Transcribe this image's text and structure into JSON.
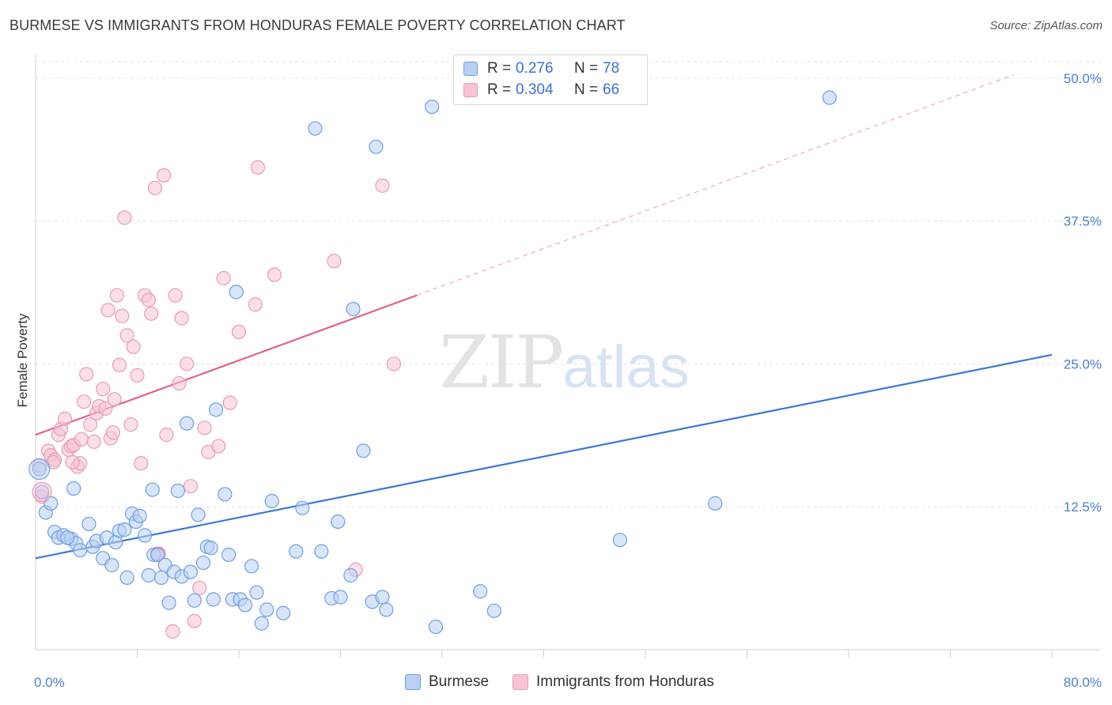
{
  "title": "BURMESE VS IMMIGRANTS FROM HONDURAS FEMALE POVERTY CORRELATION CHART",
  "source": "Source: ZipAtlas.com",
  "watermark": {
    "zip": "ZIP",
    "atlas": "atlas"
  },
  "legend": {
    "rows": [
      {
        "r_label": "R =",
        "r_value": "0.276",
        "n_label": "N =",
        "n_value": "78"
      },
      {
        "r_label": "R =",
        "r_value": "0.304",
        "n_label": "N =",
        "n_value": "66"
      }
    ]
  },
  "bottom_legend": {
    "series1": "Burmese",
    "series2": "Immigrants from Honduras"
  },
  "chart_data": {
    "type": "scatter",
    "xlabel": "",
    "ylabel": "Female Poverty",
    "xlim": [
      0,
      80
    ],
    "ylim": [
      0,
      52
    ],
    "x_tick_labels": [
      "0.0%",
      "80.0%"
    ],
    "y_ticks": [
      12.5,
      25.0,
      37.5,
      50.0
    ],
    "y_tick_labels": [
      "12.5%",
      "25.0%",
      "37.5%",
      "50.0%"
    ],
    "grid": true,
    "colors": {
      "burmese_fill": "#b8d0f4",
      "burmese_stroke": "#6f9ee0",
      "burmese_line": "#3a78d4",
      "honduras_fill": "#f8c4d4",
      "honduras_stroke": "#e99ab4",
      "honduras_line": "#e0608a",
      "grid": "#e2e2e2",
      "tick": "#4a7fd0"
    },
    "series": [
      {
        "name": "Burmese",
        "trend": {
          "x0": 0,
          "y0": 8.0,
          "x1": 80,
          "y1": 25.8
        },
        "points": [
          [
            0.3,
            15.8
          ],
          [
            0.5,
            13.8
          ],
          [
            0.8,
            12.0
          ],
          [
            1.2,
            12.8
          ],
          [
            1.5,
            10.3
          ],
          [
            1.8,
            9.8
          ],
          [
            2.2,
            10.0
          ],
          [
            2.8,
            9.7
          ],
          [
            3.2,
            9.3
          ],
          [
            3.5,
            8.7
          ],
          [
            4.2,
            11.0
          ],
          [
            4.5,
            9.0
          ],
          [
            4.8,
            9.5
          ],
          [
            5.3,
            8.0
          ],
          [
            5.6,
            9.8
          ],
          [
            6.0,
            7.4
          ],
          [
            6.3,
            9.4
          ],
          [
            6.6,
            10.4
          ],
          [
            7.0,
            10.5
          ],
          [
            7.2,
            6.3
          ],
          [
            7.6,
            11.9
          ],
          [
            7.9,
            11.2
          ],
          [
            8.2,
            11.7
          ],
          [
            8.6,
            10.0
          ],
          [
            8.9,
            6.5
          ],
          [
            9.3,
            8.3
          ],
          [
            9.6,
            8.3
          ],
          [
            9.9,
            6.3
          ],
          [
            10.2,
            7.4
          ],
          [
            10.5,
            4.1
          ],
          [
            10.9,
            6.8
          ],
          [
            11.2,
            13.9
          ],
          [
            11.5,
            6.4
          ],
          [
            11.9,
            19.8
          ],
          [
            12.2,
            6.8
          ],
          [
            12.5,
            4.3
          ],
          [
            12.8,
            11.8
          ],
          [
            13.2,
            7.6
          ],
          [
            13.5,
            9.0
          ],
          [
            13.8,
            8.9
          ],
          [
            14.2,
            21.0
          ],
          [
            14.9,
            13.6
          ],
          [
            15.2,
            8.3
          ],
          [
            15.5,
            4.4
          ],
          [
            15.8,
            31.3
          ],
          [
            16.1,
            4.4
          ],
          [
            16.5,
            3.9
          ],
          [
            17.0,
            7.3
          ],
          [
            17.4,
            5.0
          ],
          [
            17.8,
            2.3
          ],
          [
            18.2,
            3.5
          ],
          [
            18.6,
            13.0
          ],
          [
            19.5,
            3.2
          ],
          [
            20.5,
            8.6
          ],
          [
            21.0,
            12.4
          ],
          [
            22.0,
            45.6
          ],
          [
            22.5,
            8.6
          ],
          [
            23.3,
            4.5
          ],
          [
            23.8,
            11.2
          ],
          [
            24.0,
            4.6
          ],
          [
            24.8,
            6.5
          ],
          [
            25.0,
            29.8
          ],
          [
            25.8,
            17.4
          ],
          [
            26.5,
            4.2
          ],
          [
            26.8,
            44.0
          ],
          [
            27.3,
            4.6
          ],
          [
            27.6,
            3.5
          ],
          [
            31.2,
            47.5
          ],
          [
            31.5,
            2.0
          ],
          [
            35.0,
            5.1
          ],
          [
            36.1,
            3.4
          ],
          [
            46.0,
            9.6
          ],
          [
            53.5,
            12.8
          ],
          [
            62.5,
            48.3
          ],
          [
            9.2,
            14.0
          ],
          [
            3.0,
            14.1
          ],
          [
            2.5,
            9.8
          ],
          [
            14.0,
            4.4
          ]
        ]
      },
      {
        "name": "Immigrants from Honduras",
        "trend": {
          "x0": 0,
          "y0": 18.8,
          "x1": 30,
          "y1": 31.0
        },
        "trend_ext": {
          "x0": 30,
          "y0": 31.0,
          "x1": 77,
          "y1": 50.3
        },
        "points": [
          [
            0.3,
            16.1
          ],
          [
            0.5,
            13.4
          ],
          [
            1.0,
            17.4
          ],
          [
            1.2,
            17.0
          ],
          [
            1.5,
            16.6
          ],
          [
            1.8,
            18.8
          ],
          [
            2.0,
            19.3
          ],
          [
            2.3,
            20.2
          ],
          [
            2.6,
            17.5
          ],
          [
            2.8,
            17.8
          ],
          [
            3.0,
            17.9
          ],
          [
            3.3,
            16.0
          ],
          [
            3.5,
            16.3
          ],
          [
            3.6,
            18.4
          ],
          [
            3.8,
            21.7
          ],
          [
            4.0,
            24.1
          ],
          [
            4.3,
            19.7
          ],
          [
            4.6,
            18.2
          ],
          [
            4.8,
            20.7
          ],
          [
            5.0,
            21.3
          ],
          [
            5.3,
            22.8
          ],
          [
            5.5,
            21.1
          ],
          [
            5.7,
            29.7
          ],
          [
            5.9,
            18.5
          ],
          [
            6.2,
            21.9
          ],
          [
            6.4,
            31.0
          ],
          [
            6.6,
            24.9
          ],
          [
            6.8,
            29.2
          ],
          [
            7.0,
            37.8
          ],
          [
            7.2,
            27.5
          ],
          [
            7.5,
            19.7
          ],
          [
            7.7,
            26.5
          ],
          [
            8.0,
            24.0
          ],
          [
            8.3,
            16.3
          ],
          [
            8.6,
            31.0
          ],
          [
            8.9,
            30.6
          ],
          [
            9.1,
            29.4
          ],
          [
            9.4,
            40.4
          ],
          [
            9.7,
            8.4
          ],
          [
            10.1,
            41.5
          ],
          [
            10.3,
            18.8
          ],
          [
            10.8,
            1.6
          ],
          [
            11.0,
            31.0
          ],
          [
            11.3,
            23.3
          ],
          [
            11.5,
            29.0
          ],
          [
            11.9,
            25.0
          ],
          [
            12.2,
            14.3
          ],
          [
            12.5,
            2.5
          ],
          [
            12.9,
            5.4
          ],
          [
            13.3,
            19.4
          ],
          [
            13.6,
            17.3
          ],
          [
            14.4,
            17.8
          ],
          [
            14.8,
            32.5
          ],
          [
            15.3,
            21.6
          ],
          [
            16.0,
            27.8
          ],
          [
            17.3,
            30.2
          ],
          [
            17.5,
            42.2
          ],
          [
            18.8,
            32.8
          ],
          [
            23.5,
            34.0
          ],
          [
            25.2,
            7.0
          ],
          [
            27.3,
            40.6
          ],
          [
            28.2,
            25.0
          ],
          [
            9.6,
            8.4
          ],
          [
            6.1,
            19.0
          ],
          [
            1.4,
            16.4
          ],
          [
            2.9,
            16.4
          ]
        ]
      }
    ]
  }
}
